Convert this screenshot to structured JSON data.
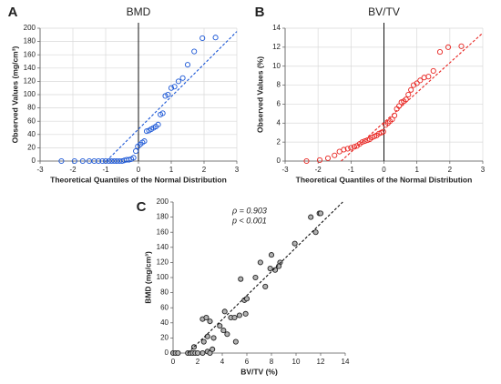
{
  "chart_data": [
    {
      "type": "scatter",
      "panel": "A",
      "title": "BMD",
      "x_label": "Theoretical Quantiles of the Normal Distribution",
      "y_label": "Observed Values (mg/cm³)",
      "xlim": [
        -3,
        3
      ],
      "ylim": [
        0,
        200
      ],
      "xticks": [
        -3,
        -2,
        -1,
        0,
        1,
        2,
        3
      ],
      "yticks": [
        0,
        20,
        40,
        60,
        80,
        100,
        120,
        140,
        160,
        180,
        200
      ],
      "grid": true,
      "color": "#1a56d6",
      "filled": false,
      "x": [
        -2.35,
        -1.95,
        -1.7,
        -1.5,
        -1.35,
        -1.22,
        -1.1,
        -1.0,
        -0.9,
        -0.82,
        -0.74,
        -0.66,
        -0.58,
        -0.5,
        -0.43,
        -0.36,
        -0.29,
        -0.22,
        -0.15,
        -0.08,
        -0.02,
        0.05,
        0.12,
        0.18,
        0.25,
        0.32,
        0.39,
        0.46,
        0.53,
        0.6,
        0.67,
        0.74,
        0.82,
        0.9,
        1.0,
        1.1,
        1.22,
        1.35,
        1.5,
        1.7,
        1.95,
        2.35
      ],
      "y": [
        0,
        0,
        0,
        0,
        0,
        0,
        0,
        0,
        0,
        0,
        0,
        0,
        0,
        0,
        1,
        2,
        2,
        3,
        5,
        15,
        22,
        25,
        28,
        30,
        45,
        46,
        48,
        50,
        52,
        55,
        70,
        72,
        98,
        100,
        110,
        112,
        120,
        125,
        145,
        165,
        185,
        186
      ],
      "reference_line": {
        "x": [
          -0.98,
          3
        ],
        "y": [
          0,
          195
        ]
      }
    },
    {
      "type": "scatter",
      "panel": "B",
      "title": "BV/TV",
      "x_label": "Theoretical Quantiles of the Normal Distribution",
      "y_label": "Observed Values (%)",
      "xlim": [
        -3,
        3
      ],
      "ylim": [
        0,
        14
      ],
      "xticks": [
        -3,
        -2,
        -1,
        0,
        1,
        2,
        3
      ],
      "yticks": [
        0,
        2,
        4,
        6,
        8,
        10,
        12,
        14
      ],
      "grid": true,
      "color": "#e8231f",
      "filled": false,
      "x": [
        -2.35,
        -1.95,
        -1.7,
        -1.5,
        -1.35,
        -1.22,
        -1.1,
        -1.0,
        -0.9,
        -0.82,
        -0.74,
        -0.66,
        -0.58,
        -0.5,
        -0.43,
        -0.36,
        -0.29,
        -0.22,
        -0.15,
        -0.08,
        -0.02,
        0.05,
        0.12,
        0.18,
        0.25,
        0.32,
        0.39,
        0.46,
        0.53,
        0.6,
        0.67,
        0.74,
        0.82,
        0.9,
        1.0,
        1.1,
        1.22,
        1.35,
        1.5,
        1.7,
        1.95,
        2.35
      ],
      "y": [
        0,
        0.1,
        0.3,
        0.6,
        1.0,
        1.2,
        1.3,
        1.4,
        1.5,
        1.6,
        1.8,
        2.0,
        2.1,
        2.2,
        2.3,
        2.5,
        2.6,
        2.7,
        2.9,
        3.0,
        3.1,
        3.8,
        4.0,
        4.2,
        4.4,
        4.8,
        5.5,
        5.8,
        6.2,
        6.3,
        6.5,
        7.0,
        7.5,
        8.0,
        8.2,
        8.5,
        8.8,
        8.9,
        9.5,
        11.5,
        12.0,
        12.1
      ],
      "reference_line": {
        "x": [
          -1.3,
          3
        ],
        "y": [
          0,
          13.5
        ]
      }
    },
    {
      "type": "scatter",
      "panel": "C",
      "x_label": "BV/TV (%)",
      "y_label": "BMD (mg/cm³)",
      "annotations": [
        "ρ = 0.903",
        "p < 0.001"
      ],
      "xlim": [
        0,
        14
      ],
      "ylim": [
        0,
        200
      ],
      "xticks": [
        0,
        2,
        4,
        6,
        8,
        10,
        12,
        14
      ],
      "yticks": [
        0,
        20,
        40,
        60,
        80,
        100,
        120,
        140,
        160,
        180,
        200
      ],
      "grid": false,
      "color": "#b3b3b3",
      "filled": true,
      "x": [
        0,
        0.2,
        0.4,
        1.2,
        1.4,
        1.6,
        1.8,
        2.0,
        2.4,
        2.8,
        3.0,
        3.2,
        2.5,
        1.7,
        2.8,
        3.3,
        2.4,
        2.7,
        3.0,
        3.8,
        4.1,
        4.4,
        4.2,
        4.7,
        5.0,
        5.1,
        5.4,
        5.5,
        5.9,
        5.8,
        6.0,
        6.7,
        7.1,
        7.5,
        7.9,
        8.0,
        8.3,
        8.7,
        8.6,
        9.9,
        11.2,
        11.6,
        11.9,
        12.0
      ],
      "y": [
        0,
        0,
        0,
        0,
        0,
        0,
        0,
        0,
        0,
        2,
        0,
        5,
        15,
        8,
        22,
        20,
        45,
        47,
        42,
        36,
        30,
        25,
        55,
        47,
        47,
        15,
        50,
        98,
        52,
        70,
        72,
        100,
        120,
        88,
        112,
        130,
        110,
        120,
        115,
        145,
        180,
        160,
        185,
        185
      ],
      "reference_line": {
        "x": [
          1.2,
          13.8
        ],
        "y": [
          0,
          200
        ]
      }
    }
  ]
}
